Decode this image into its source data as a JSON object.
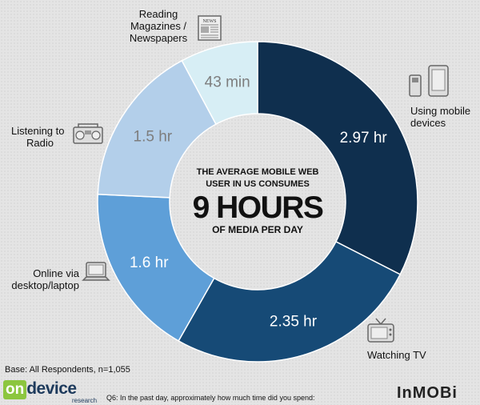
{
  "chart_data": {
    "type": "pie",
    "donut": true,
    "center_text": {
      "line1": "THE AVERAGE MOBILE WEB",
      "line2": "USER IN US CONSUMES",
      "big": "9 HOURS",
      "line3": "OF MEDIA PER DAY"
    },
    "slices": [
      {
        "category": "Using mobile devices",
        "value": 2.97,
        "label": "2.97 hr",
        "color": "#0f2f4e",
        "label_color": "#ffffff"
      },
      {
        "category": "Watching TV",
        "value": 2.35,
        "label": "2.35 hr",
        "color": "#164a76",
        "label_color": "#ffffff"
      },
      {
        "category": "Online via desktop/laptop",
        "value": 1.6,
        "label": "1.6 hr",
        "color": "#5e9fd8",
        "label_color": "#ffffff"
      },
      {
        "category": "Listening to Radio",
        "value": 1.5,
        "label": "1.5 hr",
        "color": "#b3cfea",
        "label_color": "#7d7d7d"
      },
      {
        "category": "Reading Magazines / Newspapers",
        "value": 0.717,
        "label": "43 min",
        "color": "#d7eef5",
        "label_color": "#7d7d7d"
      }
    ]
  },
  "labels": {
    "mobile": [
      "Using mobile",
      "devices"
    ],
    "tv": [
      "Watching TV"
    ],
    "desktop": [
      "Online via",
      "desktop/laptop"
    ],
    "radio": [
      "Listening to",
      "Radio"
    ],
    "reading": [
      "Reading",
      "Magazines /",
      "Newspapers"
    ]
  },
  "icons": {
    "mobile": "mobile-phone-tablet-icon",
    "tv": "television-icon",
    "desktop": "laptop-icon",
    "radio": "radio-icon",
    "reading": "newspaper-icon",
    "newspaper_text": "NEWS"
  },
  "footer": {
    "base_note": "Base: All Respondents, n=1,055",
    "question": "Q6: In the past day, approximately how much time did you spend:",
    "brand_left_on": "on",
    "brand_left_device": "device",
    "brand_left_research": "research",
    "brand_right": "InMOBi"
  }
}
